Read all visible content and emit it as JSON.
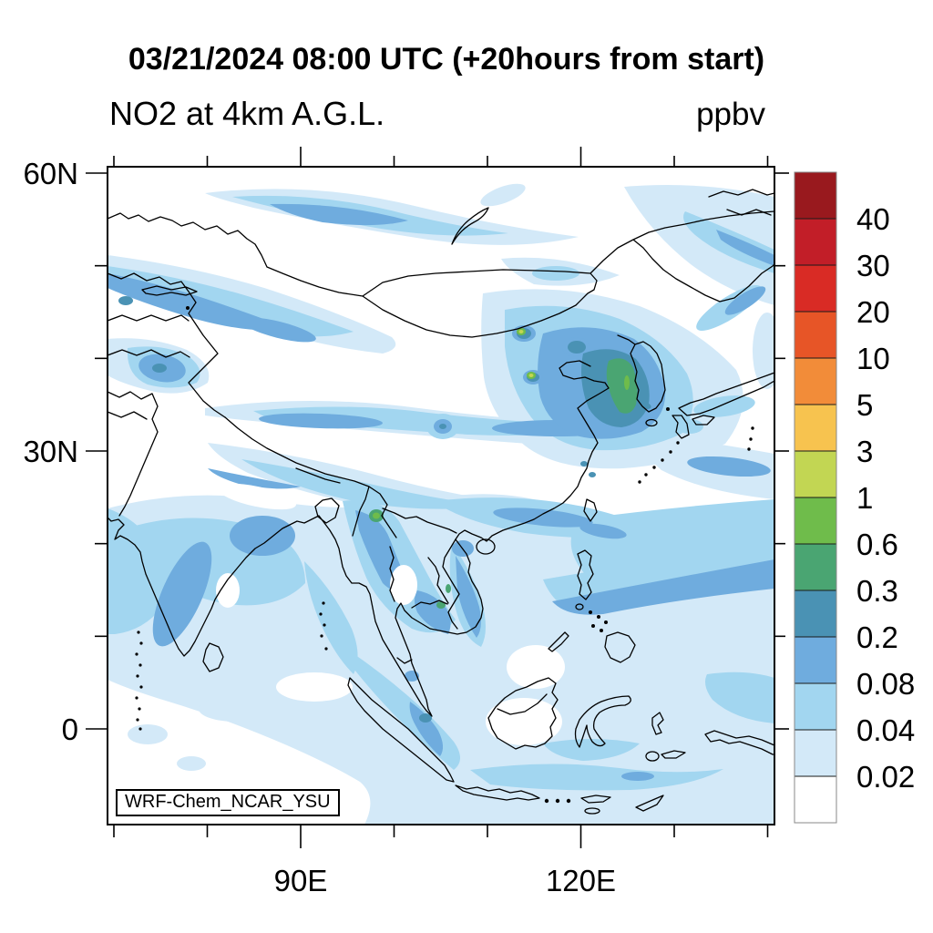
{
  "header": {
    "title": "03/21/2024 08:00 UTC (+20hours from start)",
    "subtitle": "NO2 at 4km A.G.L.",
    "units": "ppbv"
  },
  "model_label": "WRF-Chem_NCAR_YSU",
  "chart_data": {
    "type": "heatmap",
    "subtype": "filled-contour-map",
    "title": "03/21/2024 08:00 UTC (+20hours from start)",
    "subtitle": "NO2 at 4km A.G.L.",
    "units": "ppbv",
    "projection": "cylindrical equidistant over Asia",
    "map_extent": {
      "lon_range": [
        69.3,
        140.7
      ],
      "lat_range": [
        -10.3,
        60.7
      ]
    },
    "grid": "off",
    "x_axis": {
      "major_ticks": [
        {
          "value": 90,
          "label": "90E"
        },
        {
          "value": 120,
          "label": "120E"
        }
      ],
      "minor_ticks": [
        70,
        80,
        100,
        110,
        130,
        140
      ]
    },
    "y_axis": {
      "major_ticks": [
        {
          "value": 60,
          "label": "60N"
        },
        {
          "value": 30,
          "label": "30N"
        },
        {
          "value": 0,
          "label": "0"
        }
      ],
      "minor_ticks": [
        50,
        40,
        20,
        10
      ]
    },
    "colorbar": {
      "position": "right",
      "levels": [
        0.02,
        0.04,
        0.08,
        0.2,
        0.3,
        0.6,
        1,
        3,
        5,
        10,
        20,
        30,
        40
      ],
      "labels": [
        "0.02",
        "0.04",
        "0.08",
        "0.2",
        "0.3",
        "0.6",
        "1",
        "3",
        "5",
        "10",
        "20",
        "30",
        "40"
      ],
      "colors": [
        "#FFFFFF",
        "#D3E9F8",
        "#A2D6F0",
        "#6FACDE",
        "#4A92B4",
        "#4AA572",
        "#6FBC4B",
        "#C2D653",
        "#F7C34F",
        "#F28C39",
        "#E75527",
        "#D92B25",
        "#C21E28",
        "#99191E"
      ]
    },
    "features": [
      {
        "region": "Yellow Sea / Korea plume",
        "approx_lon": 125,
        "approx_lat": 36,
        "peak_ppbv": "0.3-0.6"
      },
      {
        "region": "Beijing / Bohai area",
        "approx_lon": 117,
        "approx_lat": 40,
        "peak_ppbv": "0.2-0.3 with 1-3 city spots"
      },
      {
        "region": "Northern Myanmar hotspot",
        "approx_lon": 97,
        "approx_lat": 23,
        "peak_ppbv": "0.3-0.6"
      },
      {
        "region": "Cambodia / S Vietnam spots",
        "approx_lon": 105,
        "approx_lat": 13,
        "peak_ppbv": "0.3-0.6"
      },
      {
        "region": "Central Asia / Kazakhstan band",
        "approx_lon": 75,
        "approx_lat": 46,
        "peak_ppbv": "0.08-0.2"
      },
      {
        "region": "South and Southeast Asia background",
        "peak_ppbv": "0.02-0.2"
      }
    ]
  }
}
